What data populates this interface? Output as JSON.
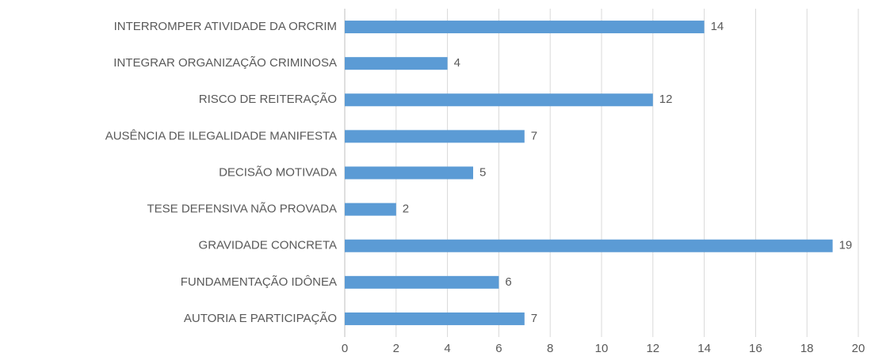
{
  "chart_data": {
    "type": "hbar",
    "categories": [
      "INTERROMPER ATIVIDADE DA ORCRIM",
      "INTEGRAR ORGANIZAÇÃO CRIMINOSA",
      "RISCO DE REITERAÇÃO",
      "AUSÊNCIA DE ILEGALIDADE MANIFESTA",
      "DECISÃO MOTIVADA",
      "TESE DEFENSIVA NÃO PROVADA",
      "GRAVIDADE CONCRETA",
      "FUNDAMENTAÇÃO IDÔNEA",
      "AUTORIA E PARTICIPAÇÃO"
    ],
    "values": [
      14,
      4,
      12,
      7,
      5,
      2,
      19,
      6,
      7
    ],
    "color": "#5b9bd5",
    "xlim": [
      0,
      20
    ],
    "xticks": [
      0,
      2,
      4,
      6,
      8,
      10,
      12,
      14,
      16,
      18,
      20
    ],
    "grid": true
  }
}
